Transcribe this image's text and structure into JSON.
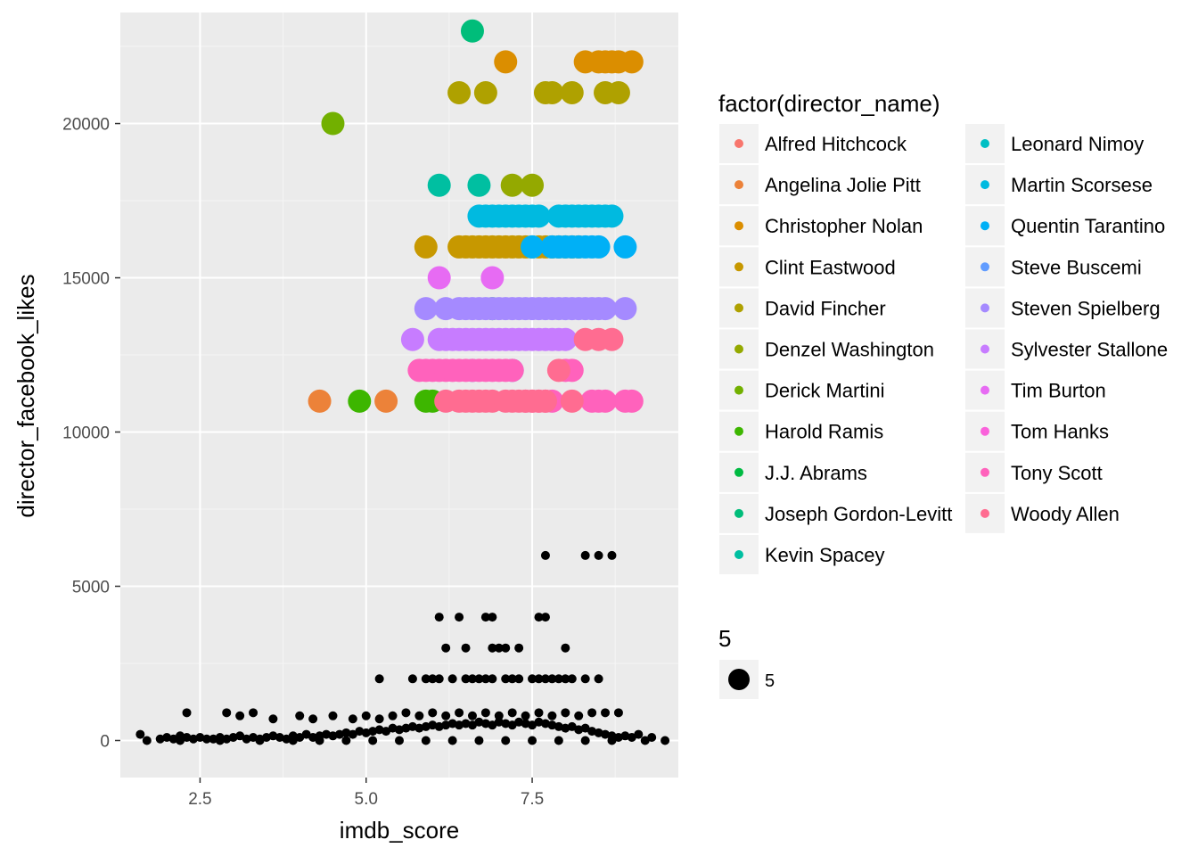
{
  "chart_data": {
    "type": "scatter",
    "title": "",
    "xlabel": "imdb_score",
    "ylabel": "director_facebook_likes",
    "xlim": [
      1.3,
      9.7
    ],
    "ylim": [
      -1200,
      23600
    ],
    "x_ticks": [
      {
        "value": 2.5,
        "label": "2.5"
      },
      {
        "value": 5.0,
        "label": "5.0"
      },
      {
        "value": 7.5,
        "label": "7.5"
      }
    ],
    "y_ticks": [
      {
        "value": 0,
        "label": "0"
      },
      {
        "value": 5000,
        "label": "5000"
      },
      {
        "value": 10000,
        "label": "10000"
      },
      {
        "value": 15000,
        "label": "15000"
      },
      {
        "value": 20000,
        "label": "20000"
      }
    ],
    "grid": true,
    "legend_position": "right",
    "color_legend_title": "factor(director_name)",
    "size_legend_title": "5",
    "size_legend_label": "5",
    "directors": [
      {
        "name": "Alfred Hitchcock",
        "color": "#F8766D",
        "x": [],
        "y": []
      },
      {
        "name": "Angelina Jolie Pitt",
        "color": "#EC8239",
        "x": [
          4.3,
          5.3
        ],
        "y": [
          11000,
          11000
        ]
      },
      {
        "name": "Christopher Nolan",
        "color": "#DB8E00",
        "x": [
          7.1,
          8.3,
          8.5,
          8.6,
          8.7,
          8.8,
          9.0
        ],
        "y": [
          22000,
          22000,
          22000,
          22000,
          22000,
          22000,
          22000
        ]
      },
      {
        "name": "Clint Eastwood",
        "color": "#C79800",
        "x": [
          5.9,
          6.4,
          6.5,
          6.6,
          6.7,
          6.8,
          6.9,
          7.0,
          7.1,
          7.2,
          7.3,
          7.4,
          7.5,
          7.6,
          7.7,
          7.8,
          7.9,
          8.0,
          8.1,
          8.2
        ],
        "y": [
          16000,
          16000,
          16000,
          16000,
          16000,
          16000,
          16000,
          16000,
          16000,
          16000,
          16000,
          16000,
          16000,
          16000,
          16000,
          16000,
          16000,
          16000,
          16000,
          16000
        ]
      },
      {
        "name": "David Fincher",
        "color": "#AFA100",
        "x": [
          6.4,
          6.8,
          7.7,
          7.8,
          8.1,
          8.6,
          8.8
        ],
        "y": [
          21000,
          21000,
          21000,
          21000,
          21000,
          21000,
          21000
        ]
      },
      {
        "name": "Denzel Washington",
        "color": "#94A900",
        "x": [
          7.2,
          7.5
        ],
        "y": [
          18000,
          18000
        ]
      },
      {
        "name": "Derick Martini",
        "color": "#72B000",
        "x": [
          4.5
        ],
        "y": [
          20000
        ]
      },
      {
        "name": "Harold Ramis",
        "color": "#3DB600",
        "x": [
          4.9,
          5.9,
          6.0
        ],
        "y": [
          11000,
          11000,
          11000
        ]
      },
      {
        "name": "J.J. Abrams",
        "color": "#00BA42",
        "x": [
          6.9
        ],
        "y": [
          14000
        ]
      },
      {
        "name": "Joseph Gordon-Levitt",
        "color": "#00BD7A",
        "x": [
          6.6
        ],
        "y": [
          23000
        ]
      },
      {
        "name": "Kevin Spacey",
        "color": "#00BFA1",
        "x": [
          6.1,
          6.7
        ],
        "y": [
          18000,
          18000
        ]
      },
      {
        "name": "Leonard Nimoy",
        "color": "#00BFC4",
        "x": [],
        "y": []
      },
      {
        "name": "Martin Scorsese",
        "color": "#00BAE0",
        "x": [
          6.7,
          6.8,
          6.9,
          7.0,
          7.1,
          7.2,
          7.3,
          7.4,
          7.5,
          7.6,
          7.9,
          8.0,
          8.1,
          8.2,
          8.3,
          8.4,
          8.5,
          8.6,
          8.7
        ],
        "y": [
          17000,
          17000,
          17000,
          17000,
          17000,
          17000,
          17000,
          17000,
          17000,
          17000,
          17000,
          17000,
          17000,
          17000,
          17000,
          17000,
          17000,
          17000,
          17000
        ]
      },
      {
        "name": "Quentin Tarantino",
        "color": "#00B0F6",
        "x": [
          7.5,
          7.8,
          7.9,
          8.0,
          8.1,
          8.2,
          8.3,
          8.4,
          8.5,
          8.9
        ],
        "y": [
          16000,
          16000,
          16000,
          16000,
          16000,
          16000,
          16000,
          16000,
          16000,
          16000
        ]
      },
      {
        "name": "Steve Buscemi",
        "color": "#619CFF",
        "x": [
          6.6,
          7.2
        ],
        "y": [
          12000,
          12000
        ]
      },
      {
        "name": "Steven Spielberg",
        "color": "#A58AFF",
        "x": [
          5.9,
          6.2,
          6.4,
          6.5,
          6.6,
          6.7,
          6.8,
          6.9,
          7.0,
          7.1,
          7.2,
          7.3,
          7.4,
          7.5,
          7.6,
          7.7,
          7.8,
          7.9,
          8.0,
          8.1,
          8.2,
          8.3,
          8.4,
          8.5,
          8.6,
          8.9
        ],
        "y": [
          14000,
          14000,
          14000,
          14000,
          14000,
          14000,
          14000,
          14000,
          14000,
          14000,
          14000,
          14000,
          14000,
          14000,
          14000,
          14000,
          14000,
          14000,
          14000,
          14000,
          14000,
          14000,
          14000,
          14000,
          14000,
          14000
        ]
      },
      {
        "name": "Sylvester Stallone",
        "color": "#C77CFF",
        "x": [
          5.7,
          6.1,
          6.2,
          6.3,
          6.4,
          6.5,
          6.6,
          6.7,
          6.8,
          6.9,
          7.0,
          7.1,
          7.2,
          7.3,
          7.4,
          7.5,
          7.6,
          7.7,
          7.8,
          7.9,
          8.0
        ],
        "y": [
          13000,
          13000,
          13000,
          13000,
          13000,
          13000,
          13000,
          13000,
          13000,
          13000,
          13000,
          13000,
          13000,
          13000,
          13000,
          13000,
          13000,
          13000,
          13000,
          13000,
          13000
        ]
      },
      {
        "name": "Tim Burton",
        "color": "#E76BF3",
        "x": [
          6.1,
          6.9
        ],
        "y": [
          15000,
          15000
        ]
      },
      {
        "name": "Tom Hanks",
        "color": "#FA62DB",
        "x": [],
        "y": []
      },
      {
        "name": "Tony Scott",
        "color": "#FF62BC",
        "x": [
          5.8,
          5.9,
          6.0,
          6.1,
          6.2,
          6.3,
          6.4,
          6.5,
          6.6,
          6.7,
          6.8,
          6.9,
          7.0,
          7.1,
          7.2,
          7.4,
          7.5,
          7.6,
          7.7,
          7.8,
          8.0,
          8.1,
          8.4,
          8.5,
          8.6,
          8.9,
          9.0
        ],
        "y": [
          12000,
          12000,
          12000,
          12000,
          12000,
          12000,
          12000,
          12000,
          12000,
          12000,
          12000,
          12000,
          12000,
          12000,
          12000,
          11000,
          11000,
          11000,
          11000,
          11000,
          12000,
          12000,
          11000,
          11000,
          11000,
          11000,
          11000
        ]
      },
      {
        "name": "Woody Allen",
        "color": "#FF6C91",
        "x": [
          6.2,
          6.4,
          6.5,
          6.6,
          6.7,
          6.8,
          6.9,
          7.1,
          7.2,
          7.3,
          7.4,
          7.5,
          7.6,
          7.7,
          7.9,
          8.1,
          8.3,
          8.5,
          8.7
        ],
        "y": [
          11000,
          11000,
          11000,
          11000,
          11000,
          11000,
          11000,
          11000,
          11000,
          11000,
          11000,
          11000,
          11000,
          11000,
          12000,
          11000,
          13000,
          13000,
          13000
        ]
      }
    ],
    "black_points": {
      "color": "#000000",
      "x": [
        1.6,
        1.7,
        1.9,
        2.0,
        2.1,
        2.2,
        2.3,
        2.4,
        2.5,
        2.6,
        2.7,
        2.8,
        2.9,
        3.0,
        3.1,
        3.2,
        3.3,
        3.4,
        3.5,
        3.6,
        3.7,
        3.8,
        3.9,
        4.0,
        4.1,
        4.2,
        4.3,
        4.4,
        4.5,
        4.6,
        4.7,
        4.8,
        4.9,
        5.0,
        5.1,
        5.2,
        5.3,
        5.4,
        5.5,
        5.6,
        5.7,
        5.8,
        5.9,
        6.0,
        6.1,
        6.2,
        6.3,
        6.4,
        6.5,
        6.6,
        6.7,
        6.8,
        6.9,
        7.0,
        7.1,
        7.2,
        7.3,
        7.4,
        7.5,
        7.6,
        7.7,
        7.8,
        7.9,
        8.0,
        8.1,
        8.2,
        8.3,
        8.4,
        8.5,
        8.6,
        8.7,
        8.8,
        8.9,
        9.0,
        9.1,
        9.3,
        9.5,
        2.3,
        2.9,
        3.1,
        3.3,
        3.6,
        4.0,
        4.2,
        4.5,
        4.8,
        5.0,
        5.2,
        5.4,
        5.6,
        5.8,
        6.0,
        6.2,
        6.4,
        6.6,
        6.8,
        7.0,
        7.2,
        7.4,
        7.6,
        7.8,
        8.0,
        8.2,
        8.4,
        8.6,
        8.8,
        2.2,
        2.8,
        3.4,
        3.9,
        4.3,
        4.7,
        5.1,
        5.5,
        5.9,
        6.3,
        6.7,
        7.1,
        7.5,
        7.9,
        8.3,
        8.7,
        9.2,
        5.2,
        5.7,
        5.9,
        6.0,
        6.1,
        6.3,
        6.5,
        6.6,
        6.7,
        6.8,
        6.9,
        7.1,
        7.2,
        7.3,
        7.5,
        7.6,
        7.7,
        7.8,
        7.9,
        8.0,
        8.1,
        8.3,
        8.5,
        6.2,
        6.5,
        6.9,
        7.0,
        7.1,
        7.3,
        8.0,
        6.1,
        6.4,
        6.8,
        6.9,
        7.6,
        7.7,
        7.7,
        8.3,
        8.5,
        8.7
      ],
      "y": [
        200,
        0,
        50,
        100,
        50,
        150,
        100,
        50,
        100,
        50,
        50,
        100,
        50,
        100,
        150,
        50,
        100,
        50,
        100,
        150,
        100,
        50,
        150,
        100,
        200,
        100,
        150,
        200,
        150,
        200,
        250,
        200,
        300,
        250,
        300,
        350,
        300,
        400,
        350,
        400,
        450,
        400,
        450,
        500,
        450,
        500,
        550,
        500,
        550,
        500,
        600,
        550,
        500,
        600,
        550,
        500,
        600,
        550,
        500,
        600,
        550,
        500,
        450,
        400,
        450,
        350,
        400,
        300,
        250,
        200,
        150,
        100,
        150,
        100,
        200,
        100,
        0,
        900,
        900,
        800,
        900,
        700,
        800,
        700,
        800,
        700,
        800,
        700,
        800,
        900,
        800,
        900,
        800,
        900,
        800,
        900,
        800,
        900,
        800,
        900,
        800,
        900,
        800,
        900,
        900,
        900,
        0,
        0,
        0,
        0,
        0,
        0,
        0,
        0,
        0,
        0,
        0,
        0,
        0,
        0,
        0,
        0,
        0,
        2000,
        2000,
        2000,
        2000,
        2000,
        2000,
        2000,
        2000,
        2000,
        2000,
        2000,
        2000,
        2000,
        2000,
        2000,
        2000,
        2000,
        2000,
        2000,
        2000,
        2000,
        2000,
        2000,
        3000,
        3000,
        3000,
        3000,
        3000,
        3000,
        3000,
        4000,
        4000,
        4000,
        4000,
        4000,
        4000,
        6000,
        6000,
        6000,
        6000
      ]
    }
  }
}
